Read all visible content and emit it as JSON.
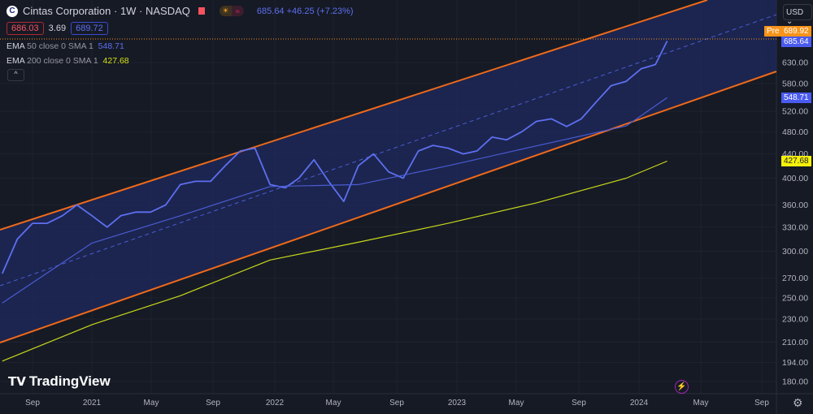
{
  "header": {
    "title": "Cintas Corporation · 1W · NASDAQ",
    "logo_letter": "C",
    "quote": "685.64 +46.25 (+7.23%)",
    "bid": "686.03",
    "spread": "3.69",
    "ask": "689.72"
  },
  "indicators": [
    {
      "name": "EMA",
      "params": "50 close 0 SMA 1",
      "value": "548.71",
      "color": "#5d6ff0"
    },
    {
      "name": "EMA",
      "params": "200 close 0 SMA 1",
      "value": "427.68",
      "color": "#d4e012"
    }
  ],
  "collapse_label": "^",
  "currency": "USD ⌄",
  "price_tags": {
    "pre_label": "Pre",
    "pre": "689.92",
    "last": "685.64",
    "ema50": "548.71",
    "ema200": "427.68"
  },
  "brand": "TradingView",
  "colors": {
    "price": "#5d6ff0",
    "ema50": "#4a5bd4",
    "ema200": "#c8d81a",
    "channel": "#f06a1a",
    "channel_fill": "#1f2a5e"
  },
  "chart_data": {
    "type": "line",
    "yscale": "log",
    "ylim": [
      172,
      700
    ],
    "y_ticks": [
      "630.00",
      "580.00",
      "520.00",
      "480.00",
      "440.00",
      "400.00",
      "360.00",
      "330.00",
      "300.00",
      "270.00",
      "250.00",
      "230.00",
      "210.00",
      "194.00",
      "180.00"
    ],
    "x_ticks": [
      "Sep",
      "2021",
      "May",
      "Sep",
      "2022",
      "May",
      "Sep",
      "2023",
      "May",
      "Sep",
      "2024",
      "May",
      "Sep"
    ],
    "series": [
      {
        "name": "Price",
        "x": [
          "2020-07-01",
          "2020-08-01",
          "2020-09-01",
          "2020-10-01",
          "2020-11-01",
          "2020-12-01",
          "2021-01-01",
          "2021-02-01",
          "2021-03-01",
          "2021-04-01",
          "2021-05-01",
          "2021-06-01",
          "2021-07-01",
          "2021-08-01",
          "2021-09-01",
          "2021-10-01",
          "2021-11-01",
          "2021-12-01",
          "2022-01-01",
          "2022-02-01",
          "2022-03-01",
          "2022-04-01",
          "2022-05-01",
          "2022-06-01",
          "2022-07-01",
          "2022-08-01",
          "2022-09-01",
          "2022-10-01",
          "2022-11-01",
          "2022-12-01",
          "2023-01-01",
          "2023-02-01",
          "2023-03-01",
          "2023-04-01",
          "2023-05-01",
          "2023-06-01",
          "2023-07-01",
          "2023-08-01",
          "2023-09-01",
          "2023-10-01",
          "2023-11-01",
          "2023-12-01",
          "2024-01-01",
          "2024-02-01",
          "2024-03-01",
          "2024-03-25"
        ],
        "values": [
          275,
          315,
          335,
          335,
          345,
          360,
          345,
          330,
          345,
          350,
          350,
          360,
          390,
          395,
          395,
          420,
          445,
          450,
          390,
          385,
          400,
          430,
          395,
          365,
          420,
          440,
          410,
          400,
          445,
          455,
          450,
          440,
          445,
          470,
          465,
          480,
          500,
          505,
          490,
          505,
          540,
          575,
          585,
          615,
          625,
          685.64
        ]
      },
      {
        "name": "EMA 50",
        "x": [
          "2020-07-01",
          "2021-01-01",
          "2021-07-01",
          "2022-01-01",
          "2022-07-01",
          "2023-01-01",
          "2023-07-01",
          "2024-01-01",
          "2024-03-25"
        ],
        "values": [
          245,
          310,
          345,
          387,
          390,
          420,
          454,
          491,
          548.71
        ]
      },
      {
        "name": "EMA 200",
        "x": [
          "2020-07-01",
          "2021-01-01",
          "2021-07-01",
          "2022-01-01",
          "2022-07-01",
          "2023-01-01",
          "2023-07-01",
          "2024-01-01",
          "2024-03-25"
        ],
        "values": [
          195,
          225,
          252,
          290,
          311,
          335,
          363,
          400,
          427.68
        ]
      }
    ]
  }
}
